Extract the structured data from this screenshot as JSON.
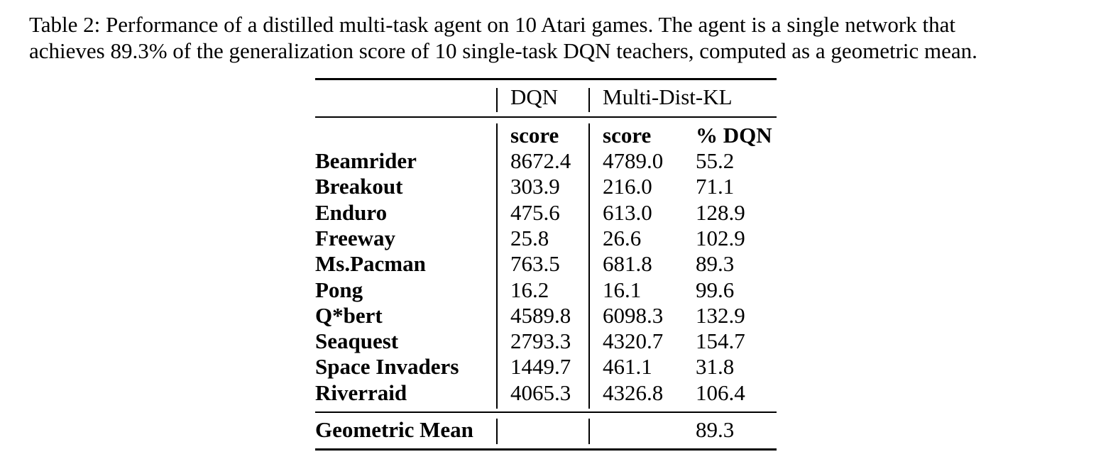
{
  "caption": {
    "line1": "Table 2: Performance of a distilled multi-task agent on 10 Atari games.  The agent is a single network that",
    "line2": "achieves 89.3% of the generalization score of 10 single-task DQN teachers, computed as a geometric mean."
  },
  "table": {
    "group_headers": {
      "dqn": "DQN",
      "multi": "Multi-Dist-KL"
    },
    "sub_headers": {
      "dqn_score": "score",
      "multi_score": "score",
      "pct_dqn": "% DQN"
    },
    "rows": [
      {
        "game": "Beamrider",
        "dqn": "8672.4",
        "multi": "4789.0",
        "pct": "55.2"
      },
      {
        "game": "Breakout",
        "dqn": "303.9",
        "multi": "216.0",
        "pct": "71.1"
      },
      {
        "game": "Enduro",
        "dqn": "475.6",
        "multi": "613.0",
        "pct": "128.9"
      },
      {
        "game": "Freeway",
        "dqn": "25.8",
        "multi": "26.6",
        "pct": "102.9"
      },
      {
        "game": "Ms.Pacman",
        "dqn": "763.5",
        "multi": "681.8",
        "pct": "89.3"
      },
      {
        "game": "Pong",
        "dqn": "16.2",
        "multi": "16.1",
        "pct": "99.6"
      },
      {
        "game": "Q*bert",
        "dqn": "4589.8",
        "multi": "6098.3",
        "pct": "132.9"
      },
      {
        "game": "Seaquest",
        "dqn": "2793.3",
        "multi": "4320.7",
        "pct": "154.7"
      },
      {
        "game": "Space Invaders",
        "dqn": "1449.7",
        "multi": "461.1",
        "pct": "31.8"
      },
      {
        "game": "Riverraid",
        "dqn": "4065.3",
        "multi": "4326.8",
        "pct": "106.4"
      }
    ],
    "footer": {
      "label": "Geometric Mean",
      "pct": "89.3"
    }
  }
}
